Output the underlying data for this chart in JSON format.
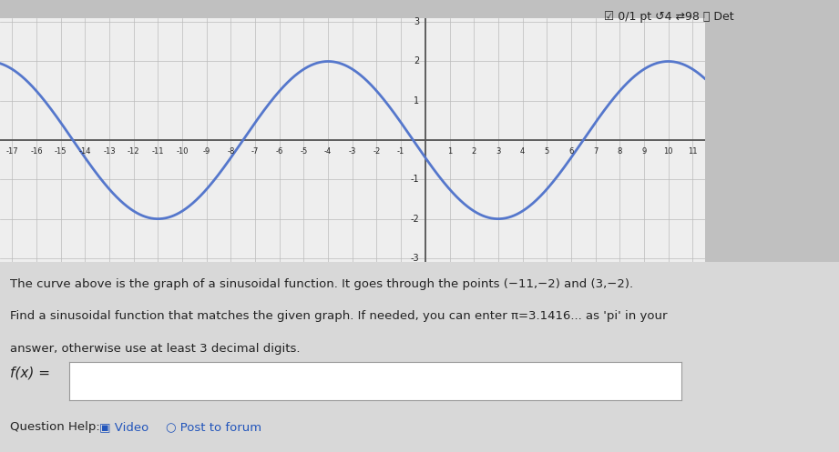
{
  "amplitude": 2,
  "period": 14,
  "omega": 0.4487989505128276,
  "phase": 3.337918496072791,
  "x_min": -17,
  "x_max": 11,
  "y_min": -3,
  "y_max": 3,
  "curve_color": "#5577cc",
  "grid_color": "#bbbbbb",
  "axis_color": "#555555",
  "plot_bg_color": "#eeeeee",
  "outer_bg_color": "#c0c0c0",
  "bottom_bg_color": "#e0e0e0",
  "text_color": "#222222",
  "link_color": "#2255bb",
  "x_ticks": [
    -17,
    -16,
    -15,
    -14,
    -13,
    -12,
    -11,
    -10,
    -9,
    -8,
    -7,
    -6,
    -5,
    -4,
    -3,
    -2,
    -1,
    1,
    2,
    3,
    4,
    5,
    6,
    7,
    8,
    9,
    10,
    11
  ],
  "y_ticks_pos": [
    -3,
    -2,
    -1,
    1,
    2,
    3
  ],
  "header_text": "☑ 0/1 pt ↺4 ⇄98 ⓘ Det",
  "desc1": "The curve above is the graph of a sinusoidal function. It goes through the points (−11,−2) and (3,−2).",
  "desc2": "Find a sinusoidal function that matches the given graph. If needed, you can enter π=3.1416... as 'pi' in your",
  "desc3": "answer, otherwise use at least 3 decimal digits.",
  "fx_label": "f(x) =",
  "qhelp": "Question Help:",
  "video_icon": "▣",
  "video_label": "Video",
  "post_icon": "○",
  "post_label": "Post to forum"
}
